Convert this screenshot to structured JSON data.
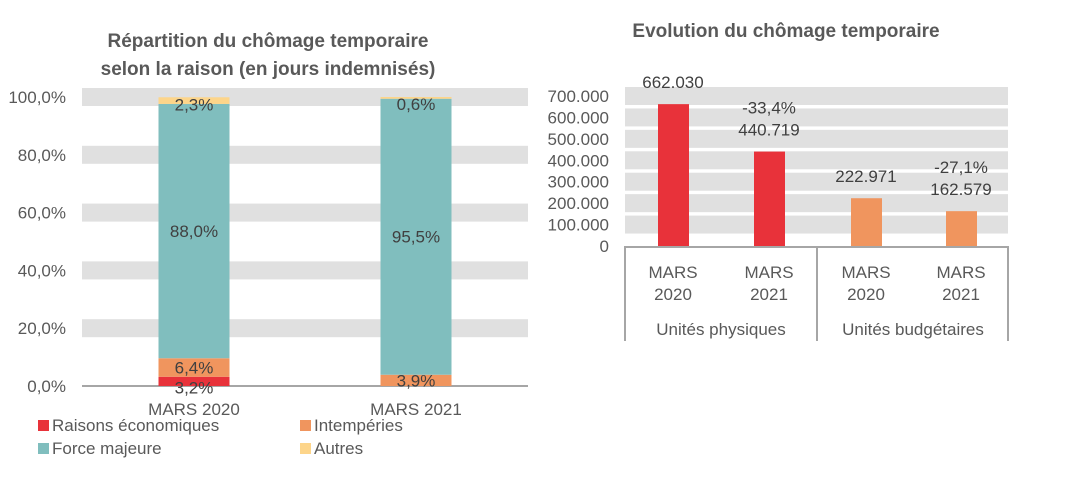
{
  "chart_data": [
    {
      "type": "bar",
      "stacked": true,
      "title": "Répartition du chômage temporaire selon la raison (en jours indemnisés)",
      "categories": [
        "MARS 2020",
        "MARS 2021"
      ],
      "ylim": [
        0,
        100
      ],
      "yticks": [
        "0,0%",
        "20,0%",
        "40,0%",
        "60,0%",
        "80,0%",
        "100,0%"
      ],
      "grid": true,
      "legend_position": "bottom",
      "series": [
        {
          "name": "Raisons économiques",
          "color": "#E8323A",
          "values": [
            3.2,
            0
          ],
          "labels": [
            "3,2%",
            ""
          ]
        },
        {
          "name": "Intempéries",
          "color": "#F0955E",
          "values": [
            6.4,
            3.9
          ],
          "labels": [
            "6,4%",
            "3,9%"
          ]
        },
        {
          "name": "Force majeure",
          "color": "#80BEBE",
          "values": [
            88.0,
            95.5
          ],
          "labels": [
            "88,0%",
            "95,5%"
          ]
        },
        {
          "name": "Autres",
          "color": "#FDD58A",
          "values": [
            2.3,
            0.6
          ],
          "labels": [
            "2,3%",
            "0,6%"
          ]
        }
      ]
    },
    {
      "type": "bar",
      "title": "Evolution du chômage temporaire",
      "groups": [
        {
          "name": "Unités physiques",
          "categories": [
            "MARS\n2020",
            "MARS\n2021"
          ],
          "color": "#E8323A",
          "values": [
            662030,
            440719
          ],
          "labels": [
            "662.030",
            "440.719"
          ],
          "change": [
            "",
            "-33,4%"
          ]
        },
        {
          "name": "Unités budgétaires",
          "categories": [
            "MARS\n2020",
            "MARS\n2021"
          ],
          "color": "#F0955E",
          "values": [
            222971,
            162579
          ],
          "labels": [
            "222.971",
            "162.579"
          ],
          "change": [
            "",
            "-27,1%"
          ]
        }
      ],
      "ylim": [
        0,
        700000
      ],
      "yticks": [
        "0",
        "100.000",
        "200.000",
        "300.000",
        "400.000",
        "500.000",
        "600.000",
        "700.000"
      ],
      "grid": true
    }
  ]
}
